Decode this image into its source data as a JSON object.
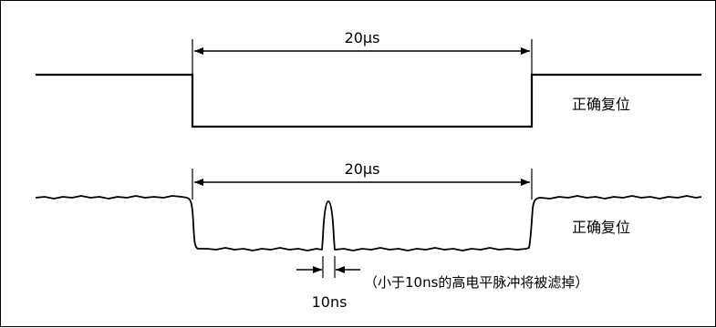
{
  "diagram": {
    "top_waveform": {
      "pulse_width_label": "20µs",
      "status_label": "正确复位"
    },
    "bottom_waveform": {
      "pulse_width_label": "20µs",
      "status_label": "正确复位",
      "glitch_width_label": "10ns",
      "glitch_note": "（小于10ns的高电平脉冲将被滤掉）"
    },
    "colors": {
      "line": "#000000",
      "background": "#ffffff"
    }
  }
}
